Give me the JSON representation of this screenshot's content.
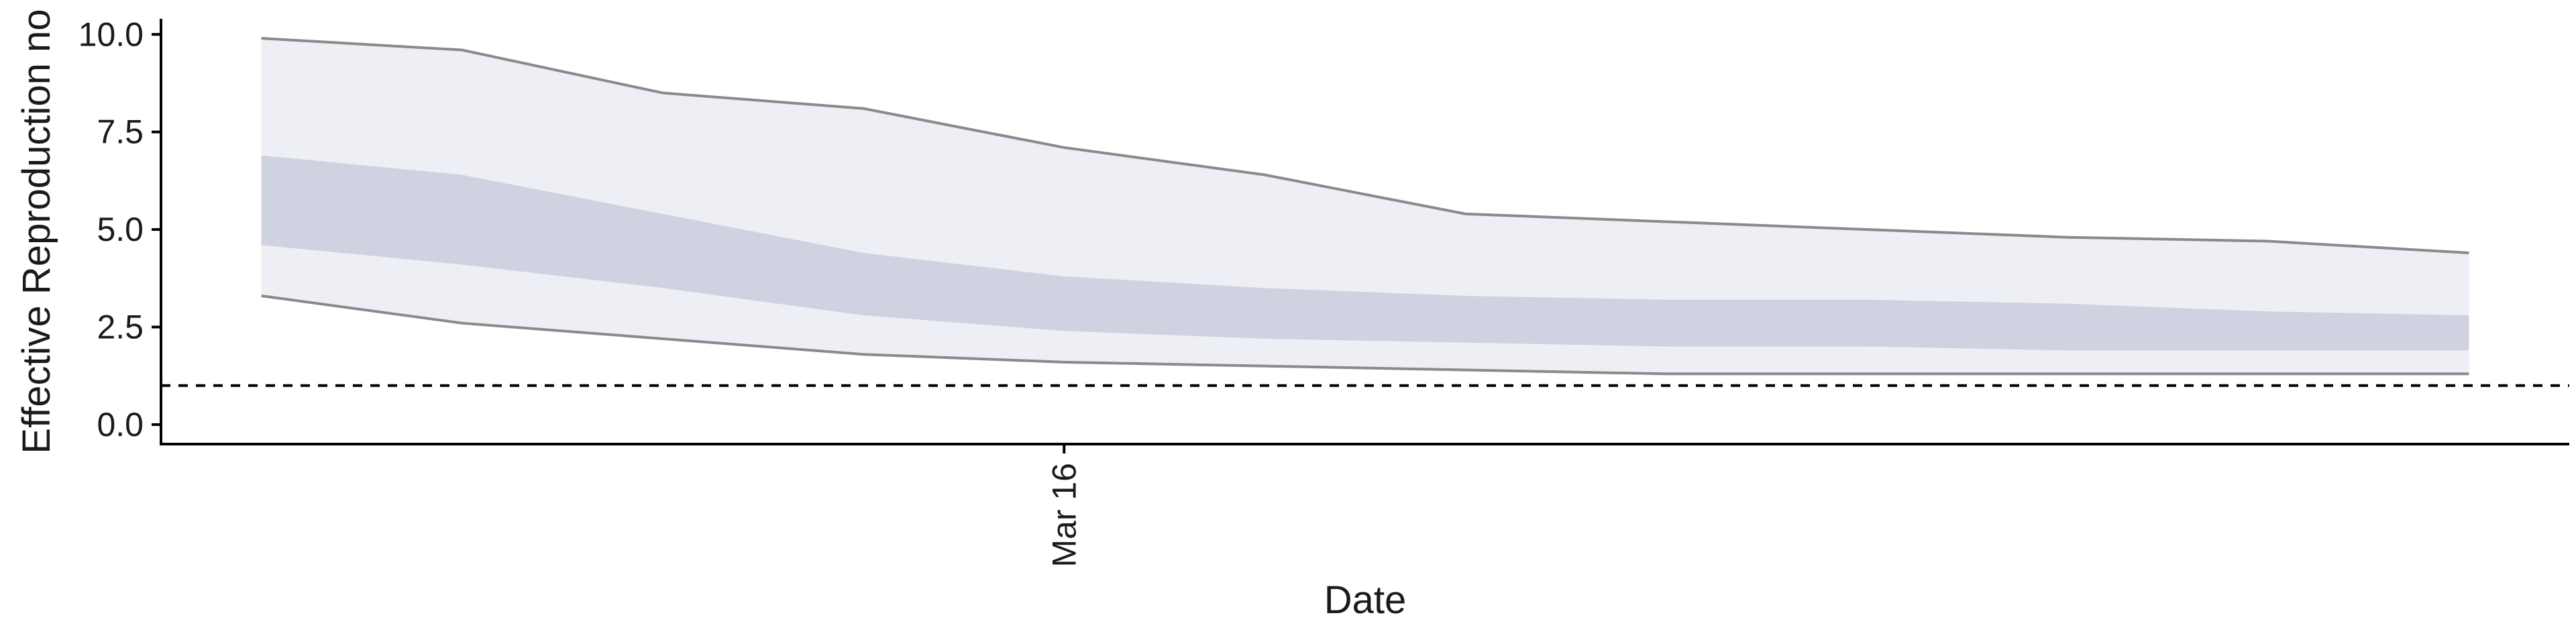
{
  "chart_data": {
    "type": "area",
    "title": "",
    "xlabel": "Date",
    "ylabel": "Effective Reproduction no",
    "x_tick_labels": [
      {
        "date": "2020-03-16",
        "label": "Mar 16"
      }
    ],
    "x": [
      "2020-03-08",
      "2020-03-09",
      "2020-03-10",
      "2020-03-11",
      "2020-03-12",
      "2020-03-13",
      "2020-03-14",
      "2020-03-15",
      "2020-03-16",
      "2020-03-17",
      "2020-03-18",
      "2020-03-19",
      "2020-03-20",
      "2020-03-21",
      "2020-03-22",
      "2020-03-23",
      "2020-03-24",
      "2020-03-25",
      "2020-03-26",
      "2020-03-27",
      "2020-03-28",
      "2020-03-29",
      "2020-03-30"
    ],
    "xlim": [
      "2020-03-07",
      "2020-03-31"
    ],
    "ylim": [
      -0.5,
      10.4
    ],
    "y_ticks": [
      0.0,
      2.5,
      5.0,
      7.5,
      10.0
    ],
    "y_tick_labels": [
      "0.0",
      "2.5",
      "5.0",
      "7.5",
      "10.0"
    ],
    "reference_line": {
      "y": 1.0,
      "style": "dashed"
    },
    "series": [
      {
        "upper": [
          9.9,
          9.6,
          8.5,
          8.1,
          7.1,
          6.4,
          5.4,
          5.2,
          5.0,
          4.8,
          4.7,
          4.4
        ]
      },
      {
        "upper": [
          6.9,
          6.4,
          5.4,
          4.4,
          3.8,
          3.5,
          3.3,
          3.2,
          3.2,
          3.1,
          2.9,
          2.8
        ],
        "lower": [
          4.6,
          4.1,
          3.5,
          2.8,
          2.4,
          2.2,
          2.1,
          2.0,
          2.0,
          1.9,
          1.9,
          1.9
        ]
      },
      {
        "lower": [
          3.3,
          2.6,
          2.2,
          1.8,
          1.6,
          1.5,
          1.4,
          1.3,
          1.3,
          1.3,
          1.3,
          1.3
        ]
      }
    ],
    "point_dates": [
      "2020-03-08",
      "2020-03-10",
      "2020-03-12",
      "2020-03-14",
      "2020-03-16",
      "2020-03-18",
      "2020-03-20",
      "2020-03-22",
      "2020-03-24",
      "2020-03-26",
      "2020-03-28",
      "2020-03-30"
    ],
    "colors": {
      "outer_band": "#eeeff5",
      "inner_band": "#cfd3e1",
      "bound_line": "#8a8a8e",
      "axis": "#000000",
      "reference_line": "#000000"
    },
    "grid": false,
    "legend": "none"
  }
}
